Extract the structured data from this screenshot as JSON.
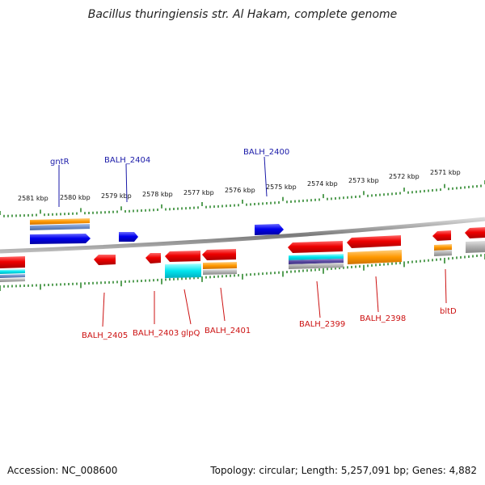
{
  "title": "Bacillus thuringiensis str. Al Hakam, complete genome",
  "footer": {
    "accession": "Accession: NC_008600",
    "topology": "Topology: circular; Length: 5,257,091 bp; Genes: 4,882"
  },
  "tick_labels": [
    "2581 kbp",
    "2580 kbp",
    "2579 kbp",
    "2578 kbp",
    "2577 kbp",
    "2576 kbp",
    "2575 kbp",
    "2574 kbp",
    "2573 kbp",
    "2572 kbp",
    "2571 kbp"
  ],
  "top_genes": [
    "gntR",
    "BALH_2404",
    "BALH_2400"
  ],
  "bottom_genes": [
    "BALH_2405",
    "BALH_2403",
    "glpQ",
    "BALH_2401",
    "BALH_2399",
    "BALH_2398",
    "bltD"
  ],
  "colors": {
    "forward_gene": "#0000ee",
    "reverse_gene": "#ee0000",
    "top_label": "#1a1aa8",
    "bottom_label": "#cc1111",
    "orange_feature": "#ff9900",
    "cyan_feature": "#00e5ee",
    "grey_feature": "#aaaaaa",
    "ruler_ticks": "#117711",
    "backbone": "#777777"
  }
}
